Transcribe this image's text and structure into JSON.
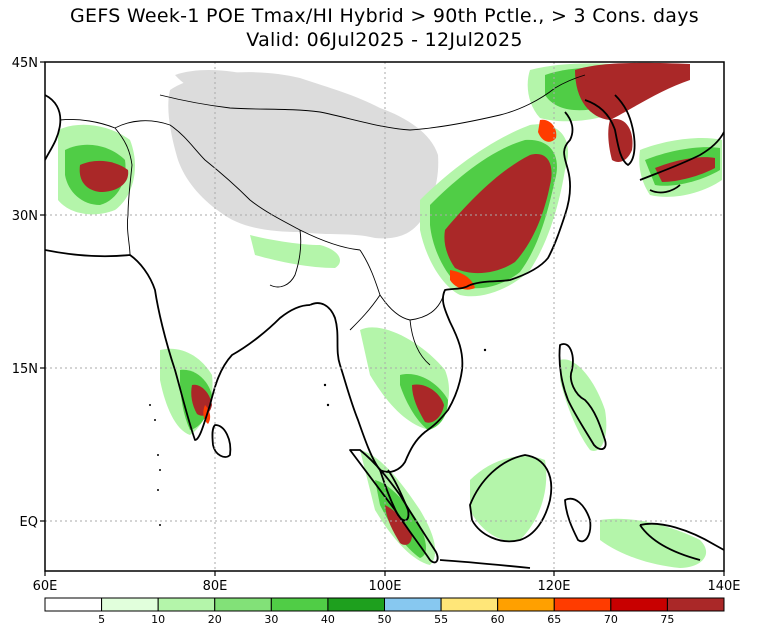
{
  "title_line1": "GEFS Week-1 POE Tmax/HI Hybrid > 90th Pctle., > 3 Cons. days",
  "title_line2": "Valid: 06Jul2025 - 12Jul2025",
  "lat_labels": [
    "45N",
    "30N",
    "15N",
    "EQ"
  ],
  "lon_labels": [
    "60E",
    "80E",
    "100E",
    "120E",
    "140E"
  ],
  "colorbar": {
    "labels": [
      "5",
      "10",
      "20",
      "30",
      "40",
      "50",
      "55",
      "60",
      "65",
      "70",
      "75"
    ],
    "colors": [
      "#ffffff",
      "#e1ffdc",
      "#b4f5aa",
      "#82e178",
      "#50cd46",
      "#1ea01e",
      "#87c8f0",
      "#ffe678",
      "#ffa000",
      "#ff3c00",
      "#c80000",
      "#aa2828"
    ]
  },
  "colors": {
    "no_data": "#dcdcdc",
    "coast": "#000000",
    "grid": "#aaaaaa"
  }
}
